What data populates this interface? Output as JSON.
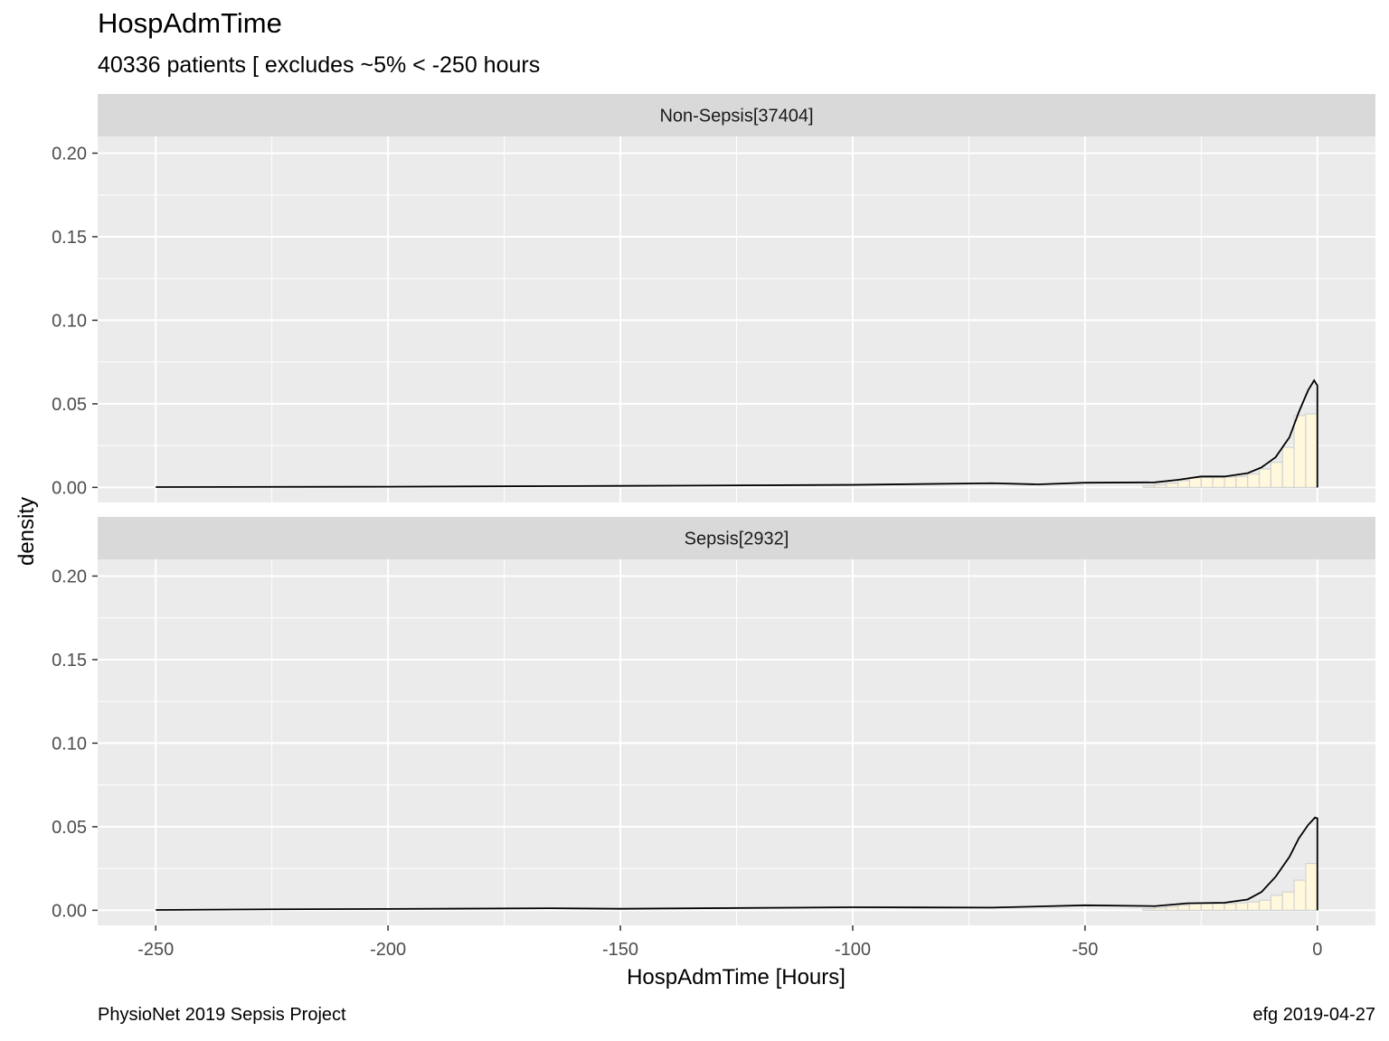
{
  "title": "HospAdmTime",
  "subtitle": "40336 patients [ excludes ~5% < -250 hours",
  "caption_left": "PhysioNet 2019 Sepsis Project",
  "caption_right": "efg 2019-04-27",
  "colors": {
    "panel_bg": "#EBEBEB",
    "strip_bg": "#D9D9D9",
    "grid": "#FFFFFF",
    "bar_fill": "#FFF8DC",
    "bar_stroke": "#D3D3D3",
    "density_line": "#000000",
    "tick_text": "#4D4D4D"
  },
  "chart_data": {
    "type": "histogram-with-density",
    "title": "HospAdmTime",
    "subtitle": "40336 patients [ excludes ~5% < -250 hours",
    "xlabel": "HospAdmTime [Hours]",
    "ylabel": "density",
    "xlim": [
      -262.5,
      12.5
    ],
    "ylim": [
      -0.009,
      0.21
    ],
    "x_ticks": [
      -250,
      -200,
      -150,
      -100,
      -50,
      0
    ],
    "x_tick_labels": [
      "-250",
      "-200",
      "-150",
      "-100",
      "-50",
      "0"
    ],
    "y_ticks": [
      0,
      0.05,
      0.1,
      0.15,
      0.2
    ],
    "y_tick_labels": [
      "0.00",
      "0.05",
      "0.10",
      "0.15",
      "0.20"
    ],
    "grid": true,
    "bin_width": 2.5,
    "panels": [
      {
        "strip": "Non-Sepsis[37404]",
        "bins": [
          {
            "x0": -37.5,
            "x1": -35.0,
            "density": 0.001
          },
          {
            "x0": -35.0,
            "x1": -32.5,
            "density": 0.0015
          },
          {
            "x0": -32.5,
            "x1": -30.0,
            "density": 0.0025
          },
          {
            "x0": -30.0,
            "x1": -27.5,
            "density": 0.004
          },
          {
            "x0": -27.5,
            "x1": -25.0,
            "density": 0.006
          },
          {
            "x0": -25.0,
            "x1": -22.5,
            "density": 0.006
          },
          {
            "x0": -22.5,
            "x1": -20.0,
            "density": 0.006
          },
          {
            "x0": -20.0,
            "x1": -17.5,
            "density": 0.0062
          },
          {
            "x0": -17.5,
            "x1": -15.0,
            "density": 0.0065
          },
          {
            "x0": -15.0,
            "x1": -12.5,
            "density": 0.008
          },
          {
            "x0": -12.5,
            "x1": -10.0,
            "density": 0.011
          },
          {
            "x0": -10.0,
            "x1": -7.5,
            "density": 0.015
          },
          {
            "x0": -7.5,
            "x1": -5.0,
            "density": 0.024
          },
          {
            "x0": -5.0,
            "x1": -2.5,
            "density": 0.043
          },
          {
            "x0": -2.5,
            "x1": 0.0,
            "density": 0.044
          }
        ],
        "density": [
          {
            "x": -250,
            "y": 0.0002
          },
          {
            "x": -200,
            "y": 0.0004
          },
          {
            "x": -150,
            "y": 0.0009
          },
          {
            "x": -100,
            "y": 0.0015
          },
          {
            "x": -70,
            "y": 0.0025
          },
          {
            "x": -60,
            "y": 0.0018
          },
          {
            "x": -50,
            "y": 0.0028
          },
          {
            "x": -35,
            "y": 0.003
          },
          {
            "x": -30,
            "y": 0.0045
          },
          {
            "x": -25,
            "y": 0.0065
          },
          {
            "x": -20,
            "y": 0.0065
          },
          {
            "x": -15,
            "y": 0.0085
          },
          {
            "x": -12,
            "y": 0.012
          },
          {
            "x": -9,
            "y": 0.018
          },
          {
            "x": -6,
            "y": 0.03
          },
          {
            "x": -4,
            "y": 0.045
          },
          {
            "x": -2,
            "y": 0.058
          },
          {
            "x": -0.7,
            "y": 0.064
          },
          {
            "x": 0,
            "y": 0.061
          }
        ]
      },
      {
        "strip": "Sepsis[2932]",
        "bins": [
          {
            "x0": -37.5,
            "x1": -35.0,
            "density": 0.001
          },
          {
            "x0": -35.0,
            "x1": -32.5,
            "density": 0.0015
          },
          {
            "x0": -32.5,
            "x1": -30.0,
            "density": 0.002
          },
          {
            "x0": -30.0,
            "x1": -27.5,
            "density": 0.003
          },
          {
            "x0": -27.5,
            "x1": -25.0,
            "density": 0.004
          },
          {
            "x0": -25.0,
            "x1": -22.5,
            "density": 0.004
          },
          {
            "x0": -22.5,
            "x1": -20.0,
            "density": 0.004
          },
          {
            "x0": -20.0,
            "x1": -17.5,
            "density": 0.004
          },
          {
            "x0": -17.5,
            "x1": -15.0,
            "density": 0.0045
          },
          {
            "x0": -15.0,
            "x1": -12.5,
            "density": 0.005
          },
          {
            "x0": -12.5,
            "x1": -10.0,
            "density": 0.006
          },
          {
            "x0": -10.0,
            "x1": -7.5,
            "density": 0.009
          },
          {
            "x0": -7.5,
            "x1": -5.0,
            "density": 0.011
          },
          {
            "x0": -5.0,
            "x1": -2.5,
            "density": 0.018
          },
          {
            "x0": -2.5,
            "x1": 0.0,
            "density": 0.028
          }
        ],
        "density": [
          {
            "x": -250,
            "y": 0.0002
          },
          {
            "x": -225,
            "y": 0.0006
          },
          {
            "x": -200,
            "y": 0.0008
          },
          {
            "x": -165,
            "y": 0.0012
          },
          {
            "x": -150,
            "y": 0.0009
          },
          {
            "x": -100,
            "y": 0.0018
          },
          {
            "x": -70,
            "y": 0.0016
          },
          {
            "x": -50,
            "y": 0.003
          },
          {
            "x": -35,
            "y": 0.0025
          },
          {
            "x": -28,
            "y": 0.0042
          },
          {
            "x": -20,
            "y": 0.0045
          },
          {
            "x": -15,
            "y": 0.0065
          },
          {
            "x": -12,
            "y": 0.011
          },
          {
            "x": -9,
            "y": 0.02
          },
          {
            "x": -6,
            "y": 0.032
          },
          {
            "x": -4,
            "y": 0.043
          },
          {
            "x": -2,
            "y": 0.051
          },
          {
            "x": -0.5,
            "y": 0.0555
          },
          {
            "x": 0,
            "y": 0.055
          }
        ]
      }
    ]
  }
}
